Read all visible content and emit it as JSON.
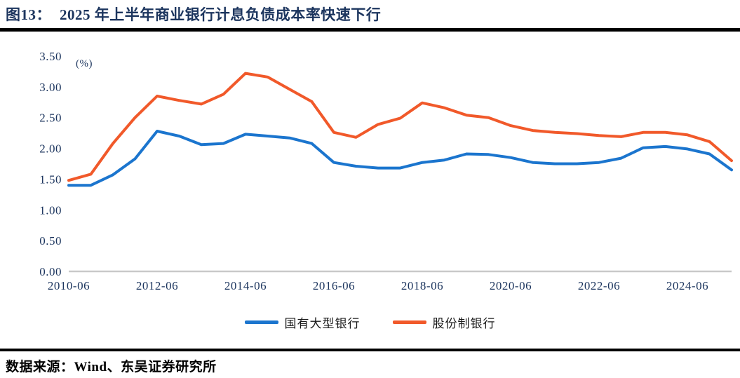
{
  "header": {
    "figure_label": "图13：",
    "title": "2025 年上半年商业银行计息负债成本率快速下行"
  },
  "footer": {
    "source": "数据来源：Wind、东吴证券研究所"
  },
  "chart_data": {
    "type": "line",
    "title": "2025 年上半年商业银行计息负债成本率快速下行",
    "unit_label": "(%)",
    "xlabel": "",
    "ylabel": "(%)",
    "ylim": [
      0.0,
      3.5
    ],
    "grid": false,
    "legend_position": "bottom-center",
    "categories": [
      "2010-06",
      "2010-12",
      "2011-06",
      "2011-12",
      "2012-06",
      "2012-12",
      "2013-06",
      "2013-12",
      "2014-06",
      "2014-12",
      "2015-06",
      "2015-12",
      "2016-06",
      "2016-12",
      "2017-06",
      "2017-12",
      "2018-06",
      "2018-12",
      "2019-06",
      "2019-12",
      "2020-06",
      "2020-12",
      "2021-06",
      "2021-12",
      "2022-06",
      "2022-12",
      "2023-06",
      "2023-12",
      "2024-06",
      "2024-12",
      "2025-06"
    ],
    "x_tick_labels": [
      "2010-06",
      "2012-06",
      "2014-06",
      "2016-06",
      "2018-06",
      "2020-06",
      "2022-06",
      "2024-06"
    ],
    "y_ticks": [
      0.0,
      0.5,
      1.0,
      1.5,
      2.0,
      2.5,
      3.0,
      3.5
    ],
    "y_tick_labels": [
      "0.00",
      "0.50",
      "1.00",
      "1.50",
      "2.00",
      "2.50",
      "3.00",
      "3.50"
    ],
    "series": [
      {
        "name": "国有大型银行",
        "color": "#1B75CE",
        "values": [
          1.4,
          1.4,
          1.57,
          1.83,
          2.28,
          2.2,
          2.06,
          2.08,
          2.23,
          2.2,
          2.17,
          2.08,
          1.77,
          1.71,
          1.68,
          1.68,
          1.77,
          1.81,
          1.91,
          1.9,
          1.85,
          1.77,
          1.75,
          1.75,
          1.77,
          1.84,
          2.01,
          2.03,
          1.99,
          1.91,
          1.65
        ]
      },
      {
        "name": "股份制银行",
        "color": "#F1592A",
        "values": [
          1.48,
          1.58,
          2.08,
          2.5,
          2.85,
          2.78,
          2.72,
          2.88,
          3.22,
          3.16,
          2.96,
          2.76,
          2.26,
          2.18,
          2.39,
          2.49,
          2.74,
          2.66,
          2.54,
          2.5,
          2.37,
          2.29,
          2.26,
          2.24,
          2.21,
          2.19,
          2.26,
          2.26,
          2.22,
          2.11,
          1.8
        ]
      }
    ],
    "colors": {
      "axis_line": "#C9C9C9",
      "tick_text": "#1C355E",
      "title_text": "#1C355E",
      "rule": "#000000"
    }
  }
}
